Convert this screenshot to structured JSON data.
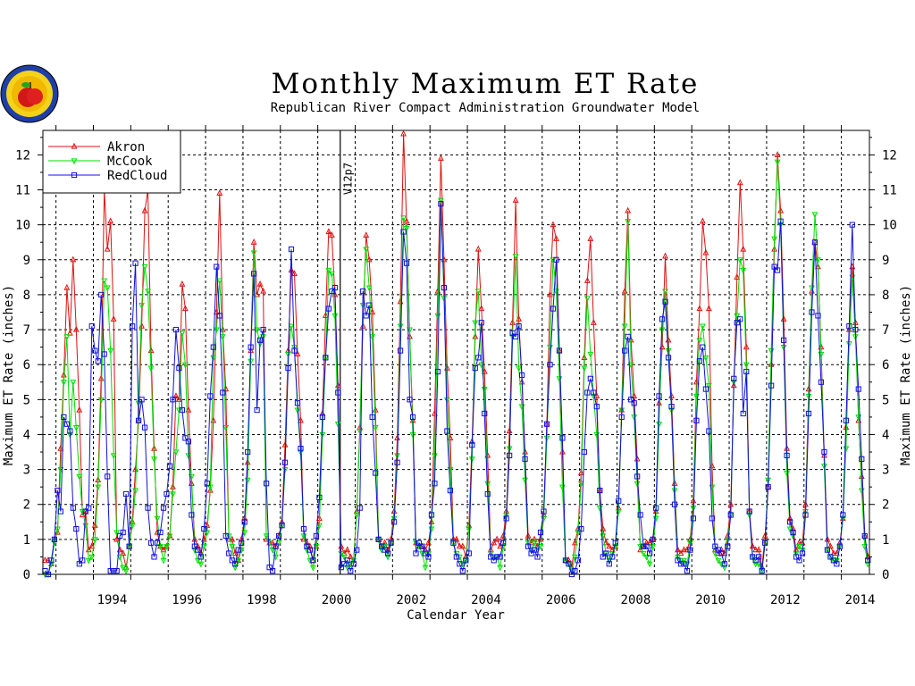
{
  "header": {
    "title": "Monthly Maximum ET Rate",
    "subtitle": "Republican River Compact Administration Groundwater Model"
  },
  "colors": {
    "Akron": "#e01010",
    "McCook": "#00e000",
    "RedCloud": "#1010e0"
  },
  "chart_data": {
    "type": "line",
    "title": "Monthly Maximum ET Rate",
    "subtitle": "Republican River Compact Administration Groundwater Model",
    "xlabel": "Calendar Year",
    "ylabel": "Maximum ET Rate (inches)",
    "ylabel_right": "Maximum ET Rate (inches)",
    "xlim": [
      1992.65,
      2014.75
    ],
    "ylim": [
      0,
      12.7
    ],
    "x_ticks": [
      "1994",
      "1996",
      "1998",
      "2000",
      "2002",
      "2004",
      "2006",
      "2008",
      "2010",
      "2012",
      "2014"
    ],
    "y_ticks": [
      "0",
      "1",
      "2",
      "3",
      "4",
      "5",
      "6",
      "7",
      "8",
      "9",
      "10",
      "11",
      "12"
    ],
    "grid": true,
    "legend_position": "top-left",
    "annotation": {
      "text": "V12p7",
      "x": 2000.6
    },
    "x_start": "1992-09",
    "x_unit": "month",
    "series": [
      {
        "name": "Akron",
        "marker": "triangle-up",
        "values": [
          0.4,
          0.4,
          0.3,
          1.0,
          1.2,
          3.6,
          5.7,
          8.2,
          6.9,
          9.0,
          7.0,
          4.7,
          1.7,
          1.8,
          0.7,
          0.8,
          1.4,
          2.7,
          5.6,
          11.0,
          9.3,
          10.1,
          7.3,
          1.0,
          0.7,
          0.6,
          0.2,
          0.8,
          1.5,
          3.0,
          4.4,
          7.1,
          10.4,
          11.0,
          6.4,
          3.6,
          1.2,
          0.8,
          0.7,
          0.8,
          1.1,
          2.5,
          5.1,
          5.0,
          8.3,
          7.6,
          4.7,
          2.6,
          1.0,
          0.8,
          0.6,
          1.0,
          1.4,
          2.4,
          4.4,
          7.5,
          10.9,
          7.0,
          5.3,
          1.0,
          1.0,
          0.6,
          0.4,
          1.0,
          1.6,
          3.2,
          6.4,
          9.5,
          8.0,
          8.3,
          8.1,
          1.0,
          0.9,
          0.9,
          0.8,
          1.1,
          1.5,
          3.7,
          6.4,
          8.7,
          8.6,
          6.3,
          4.4,
          1.0,
          0.9,
          0.8,
          0.4,
          0.8,
          1.6,
          4.6,
          7.4,
          9.8,
          9.7,
          8.0,
          5.4,
          0.8,
          0.6,
          0.7,
          0.5,
          0.4,
          1.8,
          4.2,
          7.1,
          9.7,
          9.0,
          7.5,
          4.7,
          1.0,
          0.8,
          0.9,
          0.7,
          1.0,
          1.8,
          3.9,
          7.8,
          12.6,
          10.1,
          6.8,
          4.4,
          0.9,
          0.8,
          0.8,
          0.7,
          0.9,
          1.5,
          4.6,
          8.1,
          11.9,
          9.0,
          5.9,
          3.9,
          1.0,
          1.0,
          0.8,
          0.8,
          0.5,
          1.4,
          3.8,
          6.8,
          9.3,
          7.6,
          5.8,
          3.4,
          0.7,
          0.9,
          1.0,
          0.8,
          1.1,
          1.8,
          4.1,
          7.2,
          10.7,
          7.3,
          5.5,
          3.5,
          1.1,
          0.9,
          1.0,
          0.8,
          1.0,
          1.7,
          4.3,
          8.0,
          10.0,
          9.6,
          6.4,
          3.5,
          0.4,
          0.4,
          0.2,
          0.9,
          1.3,
          2.9,
          6.2,
          8.4,
          9.6,
          7.2,
          5.1,
          2.4,
          1.3,
          0.9,
          0.8,
          0.7,
          0.8,
          1.9,
          4.7,
          8.1,
          10.4,
          6.7,
          5.1,
          3.3,
          0.7,
          0.8,
          0.9,
          0.9,
          1.0,
          1.8,
          4.9,
          6.5,
          9.1,
          6.7,
          5.1,
          2.6,
          0.7,
          0.6,
          0.7,
          0.7,
          1.0,
          2.1,
          5.5,
          7.6,
          10.1,
          9.2,
          7.6,
          3.1,
          0.7,
          0.6,
          0.7,
          0.6,
          1.1,
          2.0,
          5.4,
          8.5,
          11.2,
          9.3,
          6.5,
          1.8,
          0.8,
          0.7,
          0.7,
          0.2,
          1.1,
          2.5,
          6.0,
          9.3,
          12.0,
          10.4,
          7.3,
          3.6,
          1.6,
          1.3,
          0.7,
          0.9,
          0.9,
          2.0,
          5.3,
          8.1,
          9.5,
          8.8,
          6.5,
          3.4,
          1.0,
          0.8,
          0.6,
          0.6,
          0.9,
          1.6,
          4.2,
          7.0,
          8.8,
          7.2,
          4.4,
          2.8,
          1.1,
          0.5
        ]
      },
      {
        "name": "McCook",
        "marker": "triangle-down",
        "values": [
          0.0,
          0.0,
          0.3,
          0.9,
          1.3,
          3.0,
          5.5,
          6.8,
          4.0,
          5.5,
          4.2,
          2.8,
          1.8,
          1.4,
          0.4,
          0.5,
          1.0,
          2.5,
          5.0,
          8.4,
          8.2,
          6.4,
          3.4,
          1.2,
          0.5,
          0.2,
          0.1,
          0.8,
          1.4,
          2.4,
          4.9,
          7.7,
          8.8,
          8.1,
          5.9,
          3.3,
          1.6,
          0.8,
          0.4,
          0.8,
          1.1,
          2.3,
          3.5,
          4.7,
          6.9,
          6.0,
          3.4,
          2.8,
          0.7,
          0.4,
          0.3,
          0.8,
          1.2,
          2.5,
          6.2,
          7.0,
          8.4,
          6.8,
          4.2,
          1.1,
          0.8,
          0.2,
          0.4,
          0.7,
          1.2,
          2.7,
          6.1,
          9.2,
          7.0,
          6.6,
          6.8,
          1.1,
          0.9,
          0.7,
          0.5,
          0.9,
          1.4,
          3.0,
          6.3,
          7.1,
          6.5,
          4.7,
          3.5,
          1.1,
          0.7,
          0.4,
          0.2,
          0.8,
          1.4,
          4.0,
          6.2,
          8.7,
          8.6,
          7.4,
          4.3,
          0.6,
          0.5,
          0.2,
          0.3,
          0.4,
          1.7,
          4.1,
          7.7,
          9.3,
          8.2,
          6.8,
          4.2,
          1.0,
          0.7,
          0.8,
          0.5,
          0.9,
          1.6,
          3.4,
          7.1,
          10.2,
          9.9,
          7.0,
          4.0,
          0.9,
          0.8,
          0.6,
          0.2,
          0.6,
          1.3,
          3.4,
          7.4,
          10.7,
          7.9,
          5.0,
          3.0,
          0.9,
          0.6,
          0.5,
          0.3,
          0.4,
          1.3,
          3.3,
          7.2,
          8.1,
          6.0,
          5.3,
          2.6,
          0.6,
          0.5,
          0.5,
          0.2,
          0.8,
          1.7,
          3.6,
          6.8,
          9.1,
          5.9,
          4.8,
          2.7,
          0.9,
          0.7,
          0.9,
          0.7,
          0.8,
          1.6,
          3.9,
          6.5,
          9.0,
          8.1,
          5.6,
          2.5,
          0.4,
          0.3,
          0.1,
          0.5,
          1.2,
          2.6,
          5.9,
          7.9,
          6.3,
          5.1,
          4.0,
          1.9,
          1.1,
          0.6,
          0.4,
          0.6,
          0.8,
          1.8,
          4.7,
          7.1,
          10.1,
          6.0,
          4.5,
          2.6,
          0.8,
          0.6,
          0.5,
          0.3,
          0.8,
          1.6,
          4.3,
          7.0,
          8.1,
          6.4,
          4.7,
          2.4,
          0.5,
          0.4,
          0.4,
          0.3,
          0.9,
          1.9,
          5.1,
          6.7,
          7.1,
          6.2,
          5.4,
          2.5,
          0.6,
          0.4,
          0.3,
          0.2,
          1.0,
          1.7,
          5.5,
          7.4,
          9.0,
          8.7,
          6.0,
          1.7,
          0.5,
          0.3,
          0.3,
          0.1,
          0.9,
          2.7,
          6.4,
          9.6,
          11.8,
          10.0,
          6.5,
          2.9,
          1.3,
          1.1,
          0.6,
          0.8,
          0.7,
          1.8,
          5.1,
          8.2,
          10.3,
          9.0,
          6.3,
          3.1,
          0.7,
          0.5,
          0.4,
          0.4,
          0.8,
          1.6,
          3.6,
          6.6,
          8.5,
          6.8,
          4.5,
          2.4,
          0.8,
          0.3
        ]
      },
      {
        "name": "RedCloud",
        "marker": "square",
        "values": [
          0.1,
          0.0,
          0.4,
          1.0,
          2.4,
          1.8,
          4.5,
          4.3,
          4.1,
          1.9,
          1.3,
          0.3,
          0.4,
          1.8,
          1.9,
          7.1,
          6.4,
          6.1,
          8.0,
          6.3,
          2.8,
          0.1,
          0.1,
          0.1,
          1.1,
          1.2,
          2.3,
          0.8,
          7.1,
          8.9,
          4.4,
          5.0,
          4.2,
          1.9,
          0.9,
          0.5,
          0.9,
          1.2,
          1.9,
          2.3,
          3.1,
          5.0,
          7.0,
          5.9,
          4.7,
          3.9,
          3.8,
          1.7,
          0.8,
          0.7,
          0.5,
          1.3,
          2.6,
          5.1,
          6.5,
          8.8,
          7.4,
          5.2,
          1.1,
          0.6,
          0.4,
          0.3,
          0.7,
          0.9,
          1.5,
          3.5,
          6.5,
          8.6,
          4.7,
          6.7,
          7.0,
          2.6,
          0.2,
          0.1,
          0.8,
          1.1,
          1.4,
          3.2,
          5.9,
          9.3,
          6.4,
          4.9,
          3.6,
          1.3,
          0.8,
          0.7,
          0.4,
          1.1,
          2.2,
          4.5,
          6.2,
          7.6,
          8.1,
          8.2,
          5.2,
          0.2,
          0.3,
          0.4,
          0.1,
          0.3,
          0.7,
          1.9,
          8.1,
          7.4,
          7.7,
          4.5,
          2.9,
          1.0,
          0.8,
          0.7,
          0.6,
          0.9,
          1.5,
          3.2,
          6.4,
          9.8,
          8.9,
          5.0,
          4.5,
          0.6,
          0.9,
          0.8,
          0.6,
          0.5,
          1.7,
          2.6,
          5.8,
          10.6,
          8.2,
          4.1,
          2.4,
          0.9,
          0.5,
          0.3,
          0.1,
          0.4,
          0.6,
          3.7,
          5.9,
          6.2,
          7.2,
          4.6,
          2.3,
          0.5,
          0.4,
          0.5,
          0.5,
          0.9,
          1.6,
          3.4,
          6.9,
          6.8,
          7.1,
          5.7,
          3.3,
          0.8,
          0.6,
          0.7,
          0.5,
          1.2,
          1.8,
          4.3,
          6.0,
          7.6,
          9.0,
          6.4,
          3.9,
          0.4,
          0.3,
          0.0,
          0.1,
          0.4,
          1.3,
          3.5,
          5.2,
          5.6,
          5.2,
          4.8,
          2.4,
          0.5,
          0.6,
          0.3,
          0.5,
          0.9,
          2.1,
          4.5,
          6.4,
          6.8,
          5.0,
          4.9,
          2.8,
          1.7,
          0.8,
          0.8,
          0.6,
          1.0,
          1.9,
          5.1,
          7.3,
          7.8,
          6.2,
          4.8,
          2.0,
          0.4,
          0.3,
          0.3,
          0.1,
          0.7,
          1.6,
          4.4,
          6.1,
          6.5,
          5.3,
          4.1,
          1.6,
          0.8,
          0.7,
          0.6,
          0.3,
          0.8,
          1.7,
          5.6,
          7.2,
          7.3,
          4.6,
          5.8,
          1.8,
          0.5,
          0.4,
          0.5,
          0.1,
          0.9,
          2.5,
          5.4,
          8.8,
          8.7,
          10.1,
          6.7,
          3.4,
          1.5,
          1.2,
          0.5,
          0.4,
          0.6,
          1.7,
          4.6,
          7.5,
          9.5,
          7.4,
          5.5,
          3.5,
          0.7,
          0.5,
          0.4,
          0.3,
          0.8,
          1.7,
          4.4,
          7.1,
          10.0,
          7.0,
          5.3,
          3.3,
          1.1,
          0.4
        ]
      }
    ]
  }
}
